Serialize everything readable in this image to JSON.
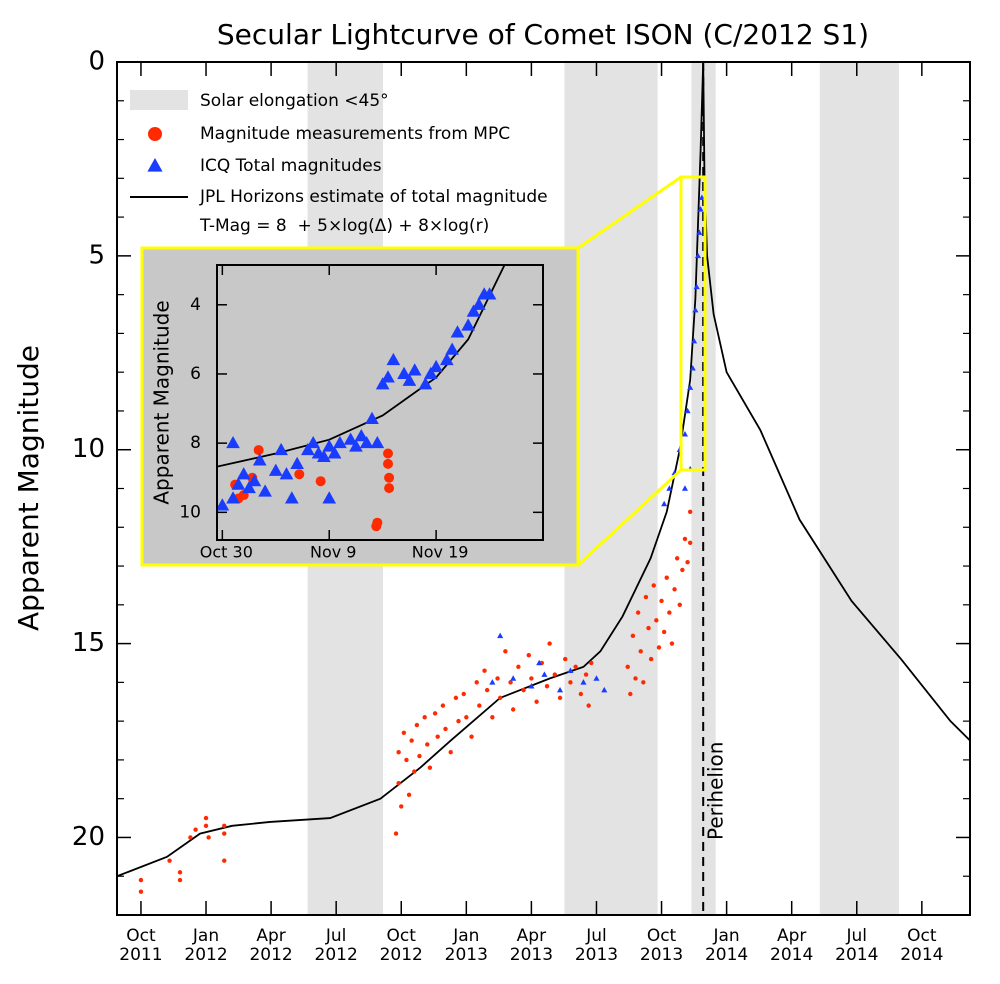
{
  "chart_data": [
    {
      "type": "scatter",
      "title": "Secular Lightcurve of Comet ISON (C/2012 S1)",
      "y_label": "Apparent Magnitude",
      "y_inverted": true,
      "xlim": [
        2011.658,
        2014.935
      ],
      "ylim": [
        0,
        22
      ],
      "yticks": [
        0,
        5,
        10,
        15,
        20
      ],
      "y_minor_ticks": [
        1,
        2,
        3,
        4,
        6,
        7,
        8,
        9,
        11,
        12,
        13,
        14,
        16,
        17,
        18,
        19,
        21
      ],
      "xticks": [
        {
          "value": 2011.75,
          "label": "Oct\n2011"
        },
        {
          "value": 2012.0,
          "label": "Jan\n2012"
        },
        {
          "value": 2012.25,
          "label": "Apr\n2012"
        },
        {
          "value": 2012.5,
          "label": "Jul\n2012"
        },
        {
          "value": 2012.75,
          "label": "Oct\n2012"
        },
        {
          "value": 2013.0,
          "label": "Jan\n2013"
        },
        {
          "value": 2013.25,
          "label": "Apr\n2013"
        },
        {
          "value": 2013.5,
          "label": "Jul\n2013"
        },
        {
          "value": 2013.75,
          "label": "Oct\n2013"
        },
        {
          "value": 2014.0,
          "label": "Jan\n2014"
        },
        {
          "value": 2014.25,
          "label": "Apr\n2014"
        },
        {
          "value": 2014.5,
          "label": "Jul\n2014"
        },
        {
          "value": 2014.75,
          "label": "Oct\n2014"
        }
      ],
      "bands": {
        "name": "Solar elongation <45°",
        "color": "#e3e3e3",
        "ranges": [
          [
            2012.39,
            2012.68
          ],
          [
            2013.377,
            2013.735
          ],
          [
            2013.865,
            2013.958
          ],
          [
            2014.358,
            2014.662
          ]
        ]
      },
      "perihelion": {
        "label": "Perihelion",
        "x": 2013.91
      },
      "legend_formula": "T-Mag = 8  + 5×log(Δ) + 8×log(r)",
      "series": [
        {
          "name": "Magnitude measurements from MPC",
          "color": "#ff2a00",
          "marker": "circle",
          "x": [
            2011.75,
            2011.75,
            2011.86,
            2011.9,
            2011.9,
            2011.94,
            2011.96,
            2012.0,
            2012.0,
            2012.01,
            2012.07,
            2012.07,
            2012.07,
            2012.73,
            2012.74,
            2012.74,
            2012.75,
            2012.76,
            2012.77,
            2012.78,
            2012.79,
            2012.8,
            2012.81,
            2012.82,
            2012.84,
            2012.85,
            2012.86,
            2012.88,
            2012.89,
            2012.91,
            2012.92,
            2012.94,
            2012.96,
            2012.97,
            2012.99,
            2013.0,
            2013.02,
            2013.04,
            2013.05,
            2013.07,
            2013.08,
            2013.1,
            2013.12,
            2013.13,
            2013.15,
            2013.17,
            2013.18,
            2013.2,
            2013.22,
            2013.24,
            2013.25,
            2013.27,
            2013.29,
            2013.31,
            2013.32,
            2013.34,
            2013.36,
            2013.38,
            2013.4,
            2013.42,
            2013.44,
            2013.46,
            2013.47,
            2013.48,
            2013.62,
            2013.63,
            2013.64,
            2013.65,
            2013.66,
            2013.67,
            2013.68,
            2013.69,
            2013.7,
            2013.71,
            2013.72,
            2013.73,
            2013.74,
            2013.75,
            2013.76,
            2013.77,
            2013.78,
            2013.79,
            2013.8,
            2013.81,
            2013.82,
            2013.83,
            2013.84,
            2013.85,
            2013.86,
            2013.86
          ],
          "values": [
            21.1,
            21.4,
            20.6,
            20.9,
            21.1,
            20.0,
            19.8,
            19.5,
            19.7,
            20.0,
            19.7,
            19.9,
            20.6,
            19.9,
            17.8,
            18.6,
            19.2,
            17.3,
            18.0,
            18.9,
            17.5,
            18.3,
            17.1,
            17.9,
            16.9,
            17.6,
            18.2,
            16.8,
            17.4,
            16.6,
            17.2,
            17.8,
            16.4,
            17.0,
            16.3,
            16.9,
            17.4,
            16.0,
            16.6,
            15.7,
            16.2,
            16.9,
            15.9,
            16.4,
            15.2,
            16.0,
            16.7,
            15.6,
            16.2,
            15.3,
            15.9,
            16.5,
            15.5,
            16.1,
            15.0,
            15.8,
            16.4,
            15.4,
            16.0,
            15.6,
            16.3,
            15.8,
            16.6,
            15.5,
            15.6,
            16.3,
            14.8,
            15.9,
            14.2,
            15.2,
            16.0,
            13.8,
            14.6,
            15.4,
            13.5,
            14.4,
            15.1,
            13.9,
            14.7,
            13.3,
            14.2,
            15.0,
            13.6,
            12.8,
            14.0,
            13.1,
            12.3,
            12.9,
            11.6,
            12.4
          ]
        },
        {
          "name": "ICQ Total magnitudes",
          "color": "#1a3cff",
          "marker": "triangle",
          "x": [
            2013.1,
            2013.13,
            2013.18,
            2013.25,
            2013.28,
            2013.3,
            2013.36,
            2013.4,
            2013.45,
            2013.5,
            2013.53,
            2013.76,
            2013.78,
            2013.8,
            2013.82,
            2013.84,
            2013.84,
            2013.85,
            2013.86,
            2013.86,
            2013.87,
            2013.875,
            2013.88,
            2013.885,
            2013.89,
            2013.895,
            2013.9,
            2013.905
          ],
          "values": [
            16.0,
            14.8,
            15.9,
            16.1,
            15.5,
            15.8,
            16.2,
            15.7,
            16.0,
            15.9,
            16.2,
            11.4,
            11.0,
            10.6,
            10.0,
            9.6,
            11.0,
            9.0,
            8.4,
            10.5,
            7.9,
            7.2,
            6.4,
            5.8,
            5.0,
            4.4,
            3.8,
            3.5
          ]
        },
        {
          "name": "JPL Horizons estimate of total magnitude",
          "color": "#000000",
          "marker": "line",
          "x": [
            2011.658,
            2011.85,
            2011.977,
            2012.1,
            2012.246,
            2012.477,
            2012.67,
            2012.823,
            2012.94,
            2013.13,
            2013.32,
            2013.45,
            2013.515,
            2013.6,
            2013.708,
            2013.77,
            2013.82,
            2013.86,
            2013.88,
            2013.9,
            2013.91,
            2013.915,
            2013.925,
            2013.95,
            2014.0,
            2014.13,
            2014.28,
            2014.48,
            2014.67,
            2014.86,
            2014.935
          ],
          "values": [
            21.0,
            20.5,
            19.9,
            19.7,
            19.6,
            19.5,
            19.0,
            18.2,
            17.5,
            16.4,
            15.9,
            15.6,
            15.2,
            14.3,
            12.8,
            11.6,
            10.0,
            8.2,
            6.1,
            2.3,
            0.0,
            3.0,
            5.0,
            6.5,
            8.0,
            9.5,
            11.8,
            13.9,
            15.4,
            17.0,
            17.5
          ]
        }
      ]
    },
    {
      "type": "scatter",
      "y_label": "Apparent Magnitude",
      "y_inverted": true,
      "xlim": [
        302.5,
        333
      ],
      "ylim": [
        2.85,
        10.8
      ],
      "yticks": [
        4,
        6,
        8,
        10
      ],
      "xticks": [
        {
          "value": 303,
          "label": "Oct 30"
        },
        {
          "value": 313,
          "label": "Nov 9"
        },
        {
          "value": 323,
          "label": "Nov 19"
        }
      ],
      "background": "#c8c8c8",
      "border_color": "#ffff00",
      "series": [
        {
          "color": "#ff2a00",
          "marker": "circle",
          "x": [
            304.2,
            304.5,
            305,
            305.8,
            306.4,
            310.2,
            312.2,
            317.4,
            317.5,
            318.5,
            318.6,
            318.6,
            318.5
          ],
          "values": [
            9.2,
            9.6,
            9.5,
            9.0,
            8.2,
            8.9,
            9.1,
            10.4,
            10.3,
            8.3,
            9.0,
            9.3,
            8.6
          ]
        },
        {
          "color": "#1a3cff",
          "marker": "triangle",
          "x": [
            303,
            304,
            304.5,
            305,
            305.5,
            306,
            306.5,
            307,
            308,
            308.5,
            309,
            309.5,
            310,
            311,
            311.5,
            312,
            312.5,
            313,
            313.5,
            314,
            315,
            315.5,
            316,
            316.5,
            317,
            317.5,
            318,
            318.5,
            319,
            320,
            320.5,
            321,
            322,
            322.5,
            323,
            324,
            324.5,
            325,
            326,
            326.5,
            327,
            327.5,
            328,
            304,
            313
          ],
          "values": [
            9.8,
            9.6,
            9.2,
            8.9,
            9.3,
            9.1,
            8.5,
            9.4,
            8.8,
            8.2,
            8.9,
            9.6,
            8.6,
            8.2,
            8.0,
            8.3,
            8.4,
            8.1,
            8.3,
            8.0,
            7.9,
            8.1,
            7.8,
            8.0,
            7.3,
            8.0,
            6.3,
            6.1,
            5.6,
            6.0,
            6.2,
            5.9,
            6.3,
            6.0,
            5.8,
            5.6,
            5.3,
            4.8,
            4.6,
            4.2,
            4.0,
            3.7,
            3.7,
            8.0,
            9.6
          ]
        },
        {
          "color": "#000000",
          "marker": "line",
          "x": [
            302.5,
            308,
            313,
            318,
            323,
            326,
            329.4
          ],
          "values": [
            8.68,
            8.3,
            7.9,
            7.2,
            6.1,
            5.0,
            2.85
          ]
        }
      ]
    }
  ]
}
